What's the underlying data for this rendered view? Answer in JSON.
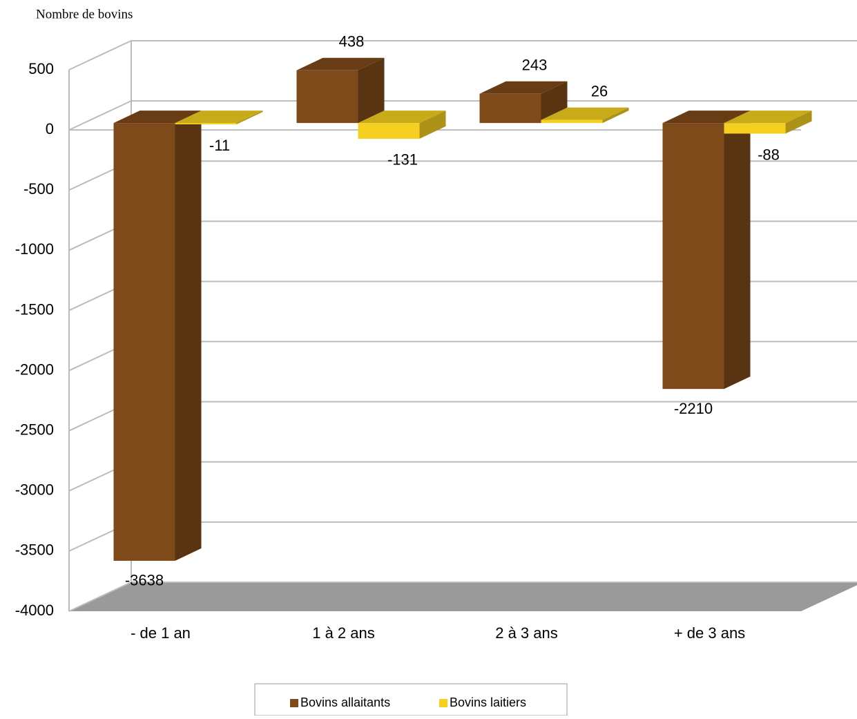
{
  "chart_data": {
    "type": "bar3d",
    "y_axis_label": "Nombre de bovins",
    "categories": [
      "- de 1 an",
      "1 à 2 ans",
      "2 à 3 ans",
      "+ de 3 ans"
    ],
    "series": [
      {
        "name": "Bovins allaitants",
        "color": "#7f4a1a",
        "values": [
          -3638,
          438,
          243,
          -2210
        ]
      },
      {
        "name": "Bovins laitiers",
        "color": "#f5d020",
        "values": [
          -11,
          -131,
          26,
          -88
        ]
      }
    ],
    "ylim": [
      -4000,
      500
    ],
    "yticks": [
      -4000,
      -3500,
      -3000,
      -2500,
      -2000,
      -1500,
      -1000,
      -500,
      0,
      500
    ],
    "grid": true
  }
}
